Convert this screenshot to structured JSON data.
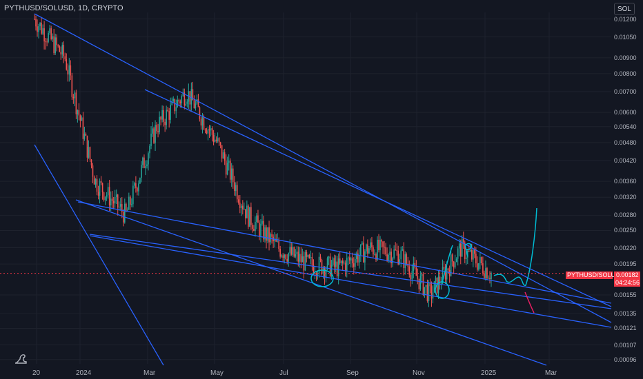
{
  "header": {
    "symbol_title": "PYTHUSD/SOLUSD, 1D, CRYPTO"
  },
  "toolbar": {
    "unit_label": "SOL"
  },
  "price_scale": {
    "ticks": [
      "0.01200",
      "0.01050",
      "0.00900",
      "0.00800",
      "0.00700",
      "0.00600",
      "0.00540",
      "0.00480",
      "0.00420",
      "0.00360",
      "0.00320",
      "0.00280",
      "0.00250",
      "0.00220",
      "0.00195",
      "0.00155",
      "0.00135",
      "0.00121",
      "0.00107",
      "0.00096"
    ]
  },
  "time_scale": {
    "ticks": [
      "20",
      "2024",
      "Mar",
      "May",
      "Jul",
      "Sep",
      "Nov",
      "2025",
      "Mar"
    ]
  },
  "last_price": {
    "symbol_label": "PYTHUSD/SOLUSD",
    "value": "0.00182",
    "countdown": "04:24:56"
  },
  "colors": {
    "background": "#131722",
    "up": "#26a69a",
    "down": "#ef5350",
    "trendline": "#2962ff",
    "annotation": "#00bcd4",
    "projection_down": "#e91e63"
  },
  "chart_data": {
    "type": "candlestick",
    "title": "PYTHUSD/SOLUSD, 1D, CRYPTO",
    "y_scale": "log",
    "ylim": [
      0.00093,
      0.0126
    ],
    "x_ticks": [
      "20",
      "2024",
      "Mar",
      "May",
      "Jul",
      "Sep",
      "Nov",
      "2025",
      "Mar"
    ],
    "approx_close_path": [
      {
        "t": "20",
        "v": 0.012
      },
      {
        "t": "Dec",
        "v": 0.009
      },
      {
        "t": "2024",
        "v": 0.0036
      },
      {
        "t": "Jan",
        "v": 0.0028
      },
      {
        "t": "Feb",
        "v": 0.0054
      },
      {
        "t": "Mar",
        "v": 0.007
      },
      {
        "t": "Apr",
        "v": 0.0048
      },
      {
        "t": "May",
        "v": 0.0028
      },
      {
        "t": "Jun",
        "v": 0.0022
      },
      {
        "t": "Jul",
        "v": 0.00195
      },
      {
        "t": "Aug",
        "v": 0.0019
      },
      {
        "t": "Sep",
        "v": 0.0022
      },
      {
        "t": "Oct",
        "v": 0.0021
      },
      {
        "t": "Nov",
        "v": 0.00155
      },
      {
        "t": "Dec",
        "v": 0.0022
      },
      {
        "t": "2025",
        "v": 0.00182
      }
    ],
    "last_value": 0.00182
  }
}
